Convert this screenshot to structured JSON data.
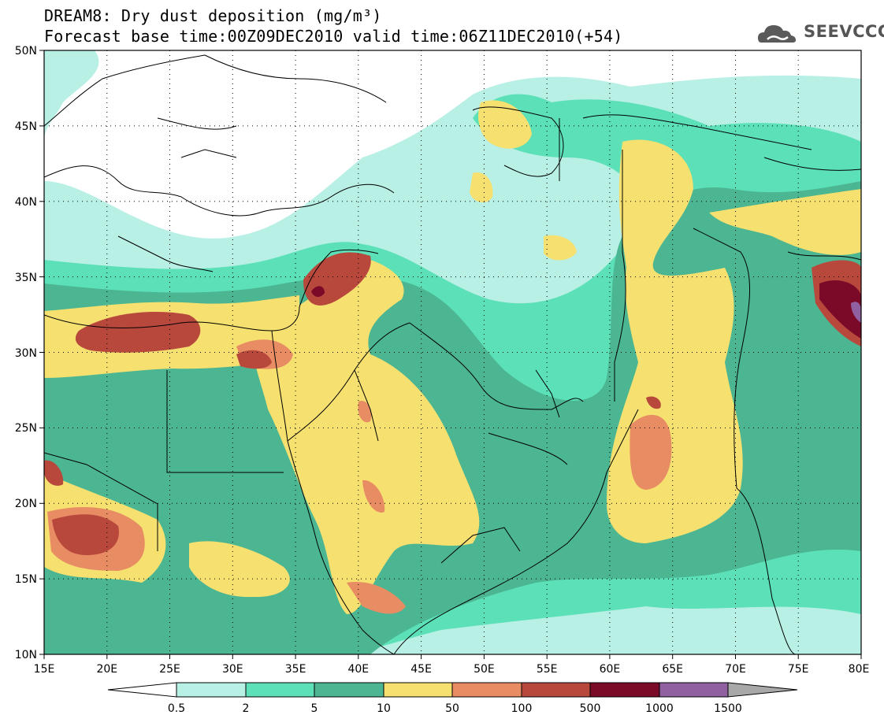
{
  "header": {
    "title_line1": "DREAM8: Dry dust deposition (mg/m³)",
    "title_line2": "Forecast base time:00Z09DEC2010 valid time:06Z11DEC2010(+54)"
  },
  "logo": {
    "text": "SEEVCCC",
    "icon": "cloud-logo-icon"
  },
  "map": {
    "lon_labels": [
      "15E",
      "20E",
      "25E",
      "30E",
      "35E",
      "40E",
      "45E",
      "50E",
      "55E",
      "60E",
      "65E",
      "70E",
      "75E",
      "80E"
    ],
    "lat_labels": [
      "50N",
      "45N",
      "40N",
      "35N",
      "30N",
      "25N",
      "20N",
      "15N",
      "10N"
    ],
    "lon_range": [
      15,
      80
    ],
    "lat_range": [
      10,
      50
    ],
    "grid": "dotted",
    "colors": {
      "land": "#ffffff",
      "border": "#000000"
    }
  },
  "colorbar": {
    "labels": [
      "0.5",
      "2",
      "5",
      "10",
      "50",
      "100",
      "500",
      "1000",
      "1500"
    ],
    "colors": [
      "#ffffff",
      "#b8f0e6",
      "#5ce0b8",
      "#4cb592",
      "#f5e070",
      "#e88c64",
      "#b8483c",
      "#7a0a28",
      "#9060a0",
      "#a8a8a8"
    ]
  }
}
